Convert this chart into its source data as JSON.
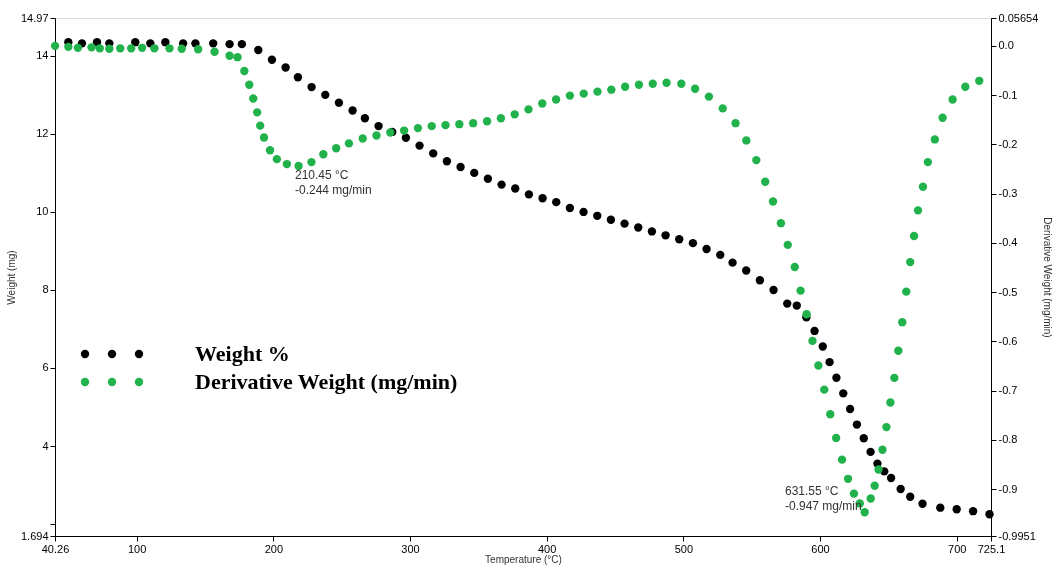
{
  "chart_data": {
    "type": "scatter",
    "xlabel": "Temperature (°C)",
    "ylabel": "Weight (mg)",
    "y2label": "Derivative Weight (mg/min)",
    "xlim": [
      40.26,
      725.1
    ],
    "xticks": [
      40.26,
      100,
      200,
      300,
      400,
      500,
      600,
      700,
      725.1
    ],
    "ylim": [
      1.694,
      14.97
    ],
    "yticks": [
      1.694,
      {
        "value": 2,
        "label": null
      },
      4,
      6,
      8,
      10,
      12,
      14,
      14.97
    ],
    "y2lim": [
      -0.9951,
      0.05654
    ],
    "y2ticks": [
      -0.9951,
      -0.9,
      -0.8,
      -0.7,
      -0.6,
      -0.5,
      -0.4,
      -0.3,
      -0.2,
      -0.1,
      {
        "value": 0,
        "label": "0.0"
      },
      0.05654
    ],
    "marker": "circle",
    "legend": "left",
    "grid": false,
    "annotations": [
      "210.45 °C\n-0.244 mg/min",
      "631.55 °C\n-0.947 mg/min"
    ],
    "series": [
      {
        "name": "Weight %",
        "color": "#000000",
        "x": [
          50,
          60,
          71,
          80,
          99,
          110,
          121,
          134,
          143,
          156,
          168,
          177,
          189,
          199,
          209,
          218,
          228,
          238,
          248,
          258,
          267,
          277,
          287,
          297,
          307,
          317,
          327,
          337,
          347,
          357,
          367,
          377,
          387,
          397,
          407,
          417,
          427,
          437,
          447,
          457,
          467,
          477,
          487,
          497,
          507,
          517,
          527,
          536,
          546,
          556,
          566,
          576,
          583,
          590,
          596,
          602,
          607,
          612,
          617,
          622,
          627,
          632,
          637,
          642,
          647,
          652,
          659,
          666,
          675,
          688,
          700,
          712,
          724
        ],
        "values": [
          14.35,
          14.32,
          14.35,
          14.32,
          14.35,
          14.32,
          14.35,
          14.32,
          14.32,
          14.32,
          14.3,
          14.3,
          14.15,
          13.9,
          13.7,
          13.45,
          13.2,
          13.0,
          12.8,
          12.6,
          12.4,
          12.2,
          12.05,
          11.9,
          11.7,
          11.5,
          11.3,
          11.15,
          11.0,
          10.85,
          10.7,
          10.6,
          10.45,
          10.35,
          10.25,
          10.1,
          10.0,
          9.9,
          9.8,
          9.7,
          9.6,
          9.5,
          9.4,
          9.3,
          9.2,
          9.05,
          8.9,
          8.7,
          8.5,
          8.25,
          8.0,
          7.65,
          7.6,
          7.3,
          6.95,
          6.55,
          6.15,
          5.75,
          5.35,
          4.95,
          4.55,
          4.2,
          3.85,
          3.55,
          3.35,
          3.18,
          2.9,
          2.7,
          2.52,
          2.42,
          2.38,
          2.33,
          2.25
        ]
      },
      {
        "name": "Derivative Weight (mg/min)",
        "color": "#22b24c",
        "axis": "y2",
        "x": [
          40.3,
          50,
          57,
          67,
          73,
          80,
          88,
          96,
          104,
          113,
          124,
          133,
          145,
          157,
          168,
          173.8,
          178.8,
          182.4,
          185.3,
          188.2,
          190.4,
          193.2,
          197.6,
          202.6,
          209.9,
          218.5,
          227.9,
          236.6,
          246,
          255.3,
          265.4,
          275.5,
          285.6,
          295.7,
          305.8,
          315.9,
          326,
          336.1,
          346.2,
          356.4,
          366.5,
          376.6,
          386.7,
          396.8,
          406.9,
          417,
          427.1,
          437.2,
          447.3,
          457.4,
          467.5,
          477.6,
          487.7,
          498.5,
          508.6,
          518.7,
          528.8,
          538.2,
          546.1,
          553.4,
          559.9,
          565.6,
          571.4,
          576.4,
          581.5,
          585.8,
          590.2,
          594.5,
          598.8,
          603.1,
          607.5,
          611.8,
          616.1,
          620.5,
          624.8,
          629.1,
          632.7,
          637.1,
          640,
          642.8,
          645.7,
          648.6,
          651.5,
          654.4,
          657.3,
          660.2,
          663.1,
          666,
          668.8,
          671.7,
          675.3,
          678.9,
          684,
          689.7,
          697,
          706.3,
          716.5
        ],
        "values": [
          0.0,
          -0.002,
          -0.004,
          -0.003,
          -0.005,
          -0.006,
          -0.005,
          -0.005,
          -0.004,
          -0.005,
          -0.005,
          -0.006,
          -0.007,
          -0.012,
          -0.02,
          -0.023,
          -0.051,
          -0.079,
          -0.107,
          -0.135,
          -0.162,
          -0.186,
          -0.212,
          -0.23,
          -0.24,
          -0.244,
          -0.236,
          -0.22,
          -0.208,
          -0.198,
          -0.188,
          -0.182,
          -0.176,
          -0.172,
          -0.167,
          -0.163,
          -0.161,
          -0.159,
          -0.157,
          -0.153,
          -0.147,
          -0.139,
          -0.129,
          -0.117,
          -0.109,
          -0.101,
          -0.097,
          -0.093,
          -0.089,
          -0.083,
          -0.079,
          -0.077,
          -0.075,
          -0.077,
          -0.087,
          -0.103,
          -0.127,
          -0.157,
          -0.192,
          -0.232,
          -0.276,
          -0.316,
          -0.36,
          -0.404,
          -0.449,
          -0.497,
          -0.545,
          -0.599,
          -0.649,
          -0.698,
          -0.748,
          -0.796,
          -0.84,
          -0.879,
          -0.909,
          -0.929,
          -0.947,
          -0.919,
          -0.893,
          -0.86,
          -0.82,
          -0.774,
          -0.724,
          -0.674,
          -0.619,
          -0.561,
          -0.499,
          -0.439,
          -0.386,
          -0.334,
          -0.286,
          -0.236,
          -0.19,
          -0.146,
          -0.109,
          -0.083,
          -0.071
        ]
      }
    ]
  }
}
